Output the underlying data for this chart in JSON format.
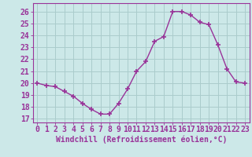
{
  "x": [
    0,
    1,
    2,
    3,
    4,
    5,
    6,
    7,
    8,
    9,
    10,
    11,
    12,
    13,
    14,
    15,
    16,
    17,
    18,
    19,
    20,
    21,
    22,
    23
  ],
  "y": [
    20.0,
    19.8,
    19.7,
    19.3,
    18.9,
    18.3,
    17.8,
    17.4,
    17.4,
    18.3,
    19.5,
    21.0,
    21.8,
    23.5,
    23.9,
    26.0,
    26.0,
    25.7,
    25.1,
    24.9,
    23.2,
    21.2,
    20.1,
    20.0
  ],
  "line_color": "#993399",
  "marker": "+",
  "marker_size": 5,
  "bg_color": "#cce8e8",
  "grid_color": "#aacccc",
  "xlabel": "Windchill (Refroidissement éolien,°C)",
  "xlabel_fontsize": 7,
  "xtick_labels": [
    "0",
    "1",
    "2",
    "3",
    "4",
    "5",
    "6",
    "7",
    "8",
    "9",
    "10",
    "11",
    "12",
    "13",
    "14",
    "15",
    "16",
    "17",
    "18",
    "19",
    "20",
    "21",
    "22",
    "23"
  ],
  "ytick_values": [
    17,
    18,
    19,
    20,
    21,
    22,
    23,
    24,
    25,
    26
  ],
  "ylim": [
    16.7,
    26.7
  ],
  "xlim": [
    -0.5,
    23.5
  ],
  "tick_fontsize": 7,
  "lw": 1.0
}
